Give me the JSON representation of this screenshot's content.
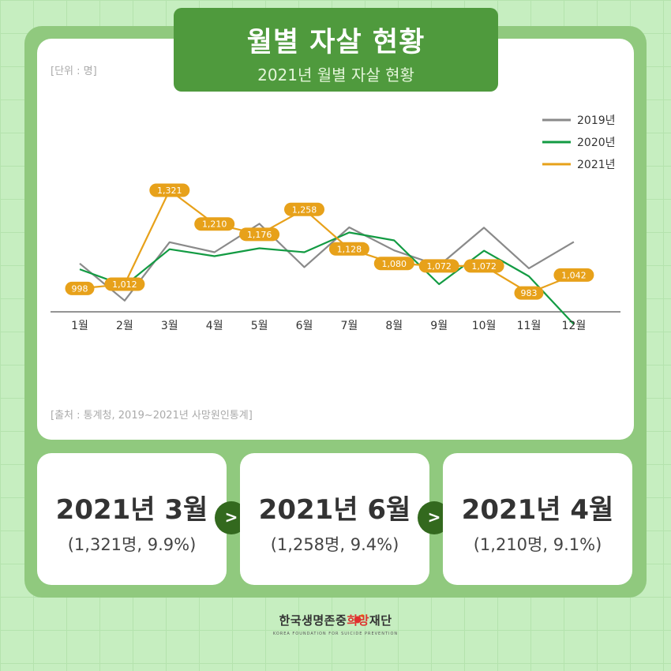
{
  "header": {
    "title": "월별 자살 현황",
    "subtitle": "2021년 월별 자살 현황"
  },
  "chart_meta": {
    "unit_label": "[단위 : 명]",
    "source_label": "[출처 : 통계청, 2019~2021년 사망원인통계]"
  },
  "chart_data": {
    "type": "line",
    "categories": [
      "1월",
      "2월",
      "3월",
      "4월",
      "5월",
      "6월",
      "7월",
      "8월",
      "9월",
      "10월",
      "11월",
      "12월"
    ],
    "series": [
      {
        "name": "2019년",
        "color": "#8a8a8a",
        "values": [
          1080,
          958,
          1150,
          1117,
          1211,
          1068,
          1199,
          1123,
          1073,
          1198,
          1064,
          1151
        ]
      },
      {
        "name": "2020년",
        "color": "#139b43",
        "values": [
          1061,
          1007,
          1127,
          1104,
          1130,
          1117,
          1182,
          1156,
          1012,
          1122,
          1038,
          880
        ]
      },
      {
        "name": "2021년",
        "color": "#e7a11a",
        "values": [
          998,
          1012,
          1321,
          1210,
          1176,
          1258,
          1128,
          1080,
          1072,
          1072,
          983,
          1042
        ],
        "labels": [
          "998",
          "1,012",
          "1,321",
          "1,210",
          "1,176",
          "1,258",
          "1,128",
          "1,080",
          "1,072",
          "1,072",
          "983",
          "1,042"
        ]
      }
    ],
    "legend_position": "top-right",
    "grid": false
  },
  "cards": [
    {
      "title": "2021년 3월",
      "detail": "(1,321명, 9.9%)"
    },
    {
      "title": "2021년 6월",
      "detail": "(1,258명, 9.4%)"
    },
    {
      "title": "2021년 4월",
      "detail": "(1,210명, 9.1%)"
    }
  ],
  "arrow_glyph": ">",
  "footer": {
    "name_main": "한국생명존중",
    "name_accent": "희망",
    "name_end": "재단",
    "subtitle": "KOREA FOUNDATION FOR SUICIDE PREVENTION"
  }
}
